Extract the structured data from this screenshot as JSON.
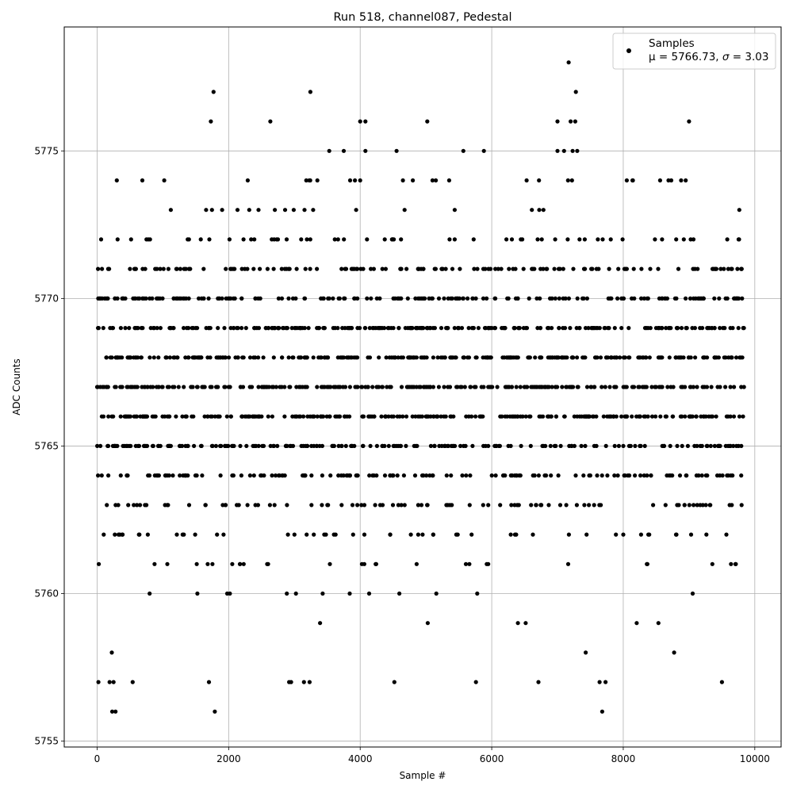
{
  "chart_data": {
    "type": "scatter",
    "title": "Run 518, channel087, Pedestal",
    "xlabel": "Sample #",
    "ylabel": "ADC Counts",
    "xlim": [
      -500,
      10400
    ],
    "ylim": [
      5754.8,
      5779.2
    ],
    "xticks": [
      0,
      2000,
      4000,
      6000,
      8000,
      10000
    ],
    "yticks": [
      5755,
      5760,
      5765,
      5770,
      5775
    ],
    "grid": true,
    "legend_position": "top-right",
    "legend": {
      "label": "Samples",
      "stats_prefix": "μ = 5766.73, ",
      "sigma_symbol": "σ",
      "stats_suffix": " = 3.03"
    },
    "marker_color": "#000000",
    "series": [
      {
        "name": "Samples",
        "summary": {
          "n": 10000,
          "mean": 5766.73,
          "sigma": 3.03
        },
        "levels": [
          5756,
          5757,
          5758,
          5759,
          5760,
          5761,
          5762,
          5763,
          5764,
          5765,
          5766,
          5767,
          5768,
          5769,
          5770,
          5771,
          5772,
          5773,
          5774,
          5775,
          5776,
          5777,
          5778
        ],
        "level_densities": [
          0.003,
          0.005,
          0.01,
          0.02,
          0.04,
          0.09,
          0.16,
          0.28,
          0.45,
          0.62,
          0.78,
          0.85,
          0.85,
          0.78,
          0.62,
          0.42,
          0.18,
          0.06,
          0.03,
          0.01,
          0.005,
          0.002,
          0.001
        ],
        "highlighted_points": [
          [
            1770,
            5777
          ],
          [
            7170,
            5778
          ],
          [
            7280,
            5777
          ],
          [
            4000,
            5776
          ],
          [
            4080,
            5776
          ],
          [
            5020,
            5776
          ],
          [
            7000,
            5776
          ],
          [
            7200,
            5776
          ],
          [
            7270,
            5776
          ],
          [
            9000,
            5776
          ],
          [
            3530,
            5775
          ],
          [
            3750,
            5775
          ],
          [
            4080,
            5775
          ],
          [
            7000,
            5775
          ],
          [
            7100,
            5775
          ],
          [
            7230,
            5775
          ],
          [
            7300,
            5775
          ],
          [
            300,
            5774
          ],
          [
            1020,
            5774
          ],
          [
            2290,
            5774
          ],
          [
            3180,
            5774
          ],
          [
            3240,
            5774
          ],
          [
            3920,
            5774
          ],
          [
            4000,
            5774
          ],
          [
            4650,
            5774
          ],
          [
            4800,
            5774
          ],
          [
            5100,
            5774
          ],
          [
            5150,
            5774
          ],
          [
            7160,
            5774
          ],
          [
            7220,
            5774
          ],
          [
            8140,
            5774
          ],
          [
            8560,
            5774
          ],
          [
            8730,
            5774
          ],
          [
            8880,
            5774
          ],
          [
            8950,
            5774
          ],
          [
            230,
            5756
          ],
          [
            280,
            5756
          ],
          [
            7680,
            5756
          ],
          [
            20,
            5757
          ],
          [
            190,
            5757
          ],
          [
            250,
            5757
          ],
          [
            540,
            5757
          ],
          [
            1700,
            5757
          ],
          [
            2920,
            5757
          ],
          [
            2950,
            5757
          ],
          [
            3230,
            5757
          ],
          [
            5760,
            5757
          ],
          [
            6710,
            5757
          ],
          [
            7640,
            5757
          ],
          [
            7730,
            5757
          ],
          [
            9500,
            5757
          ]
        ]
      }
    ]
  }
}
